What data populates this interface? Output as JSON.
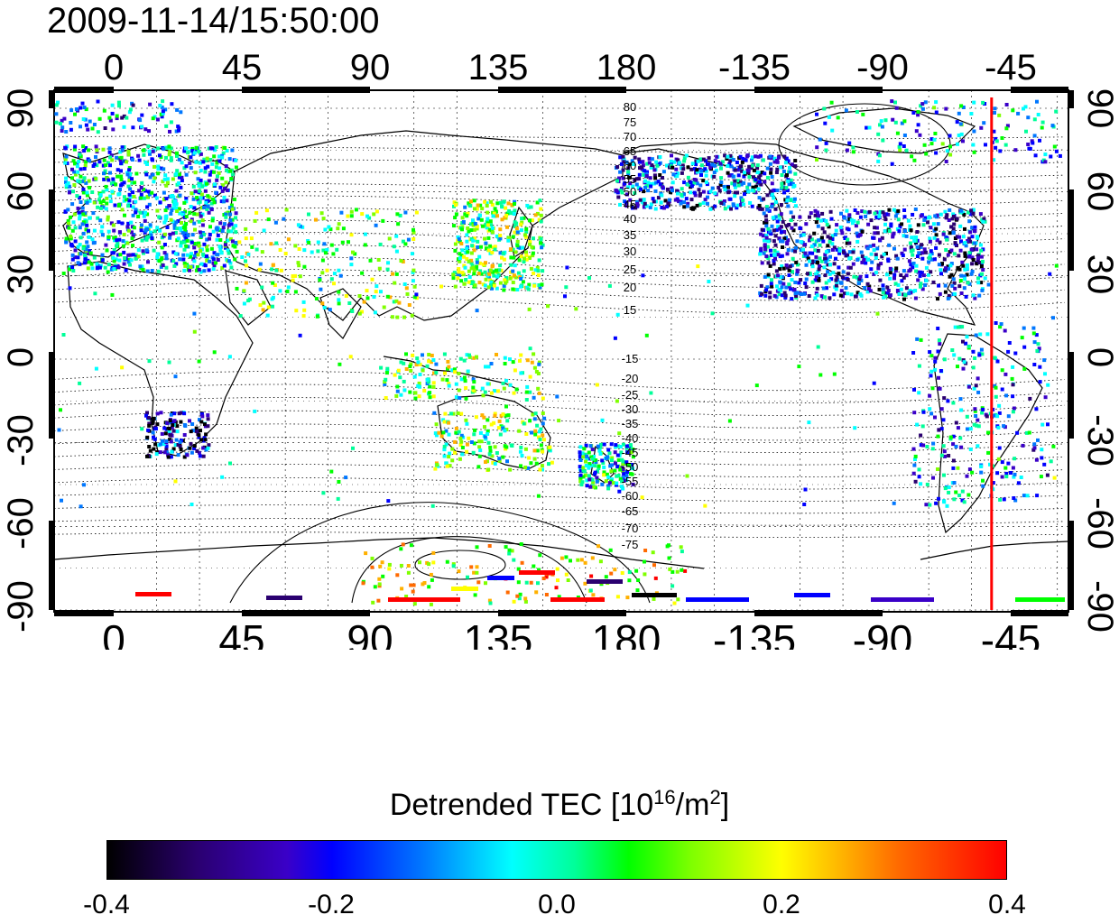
{
  "timestamp": "2009-11-14/15:50:00",
  "map": {
    "top_lon_labels": [
      "0",
      "45",
      "90",
      "135",
      "180",
      "-135",
      "-90",
      "-45"
    ],
    "bottom_lon_labels": [
      "0",
      "45",
      "90",
      "135",
      "180",
      "-135",
      "-90",
      "-45"
    ],
    "lat_labels": [
      "90",
      "60",
      "30",
      "0",
      "-30",
      "-60",
      "-90"
    ],
    "contour_labels": [
      "80",
      "75",
      "70",
      "65",
      "60",
      "55",
      "50",
      "45",
      "40",
      "35",
      "30",
      "25",
      "20",
      "15",
      "-15",
      "-20",
      "-25",
      "-30",
      "-35",
      "-40",
      "-45",
      "-50",
      "-55",
      "-60",
      "-65",
      "-70",
      "-75"
    ],
    "terminator_longitude": -53,
    "terminator_color": "#ff0000"
  },
  "colorbar": {
    "title_main": "Detrended TEC  [10",
    "title_exp": "16",
    "title_unit": "/m",
    "title_exp2": "2",
    "title_close": "]",
    "ticks": [
      "-0.4",
      "-0.2",
      "0.0",
      "0.2",
      "0.4"
    ],
    "range": [
      -0.4,
      0.4
    ]
  }
}
